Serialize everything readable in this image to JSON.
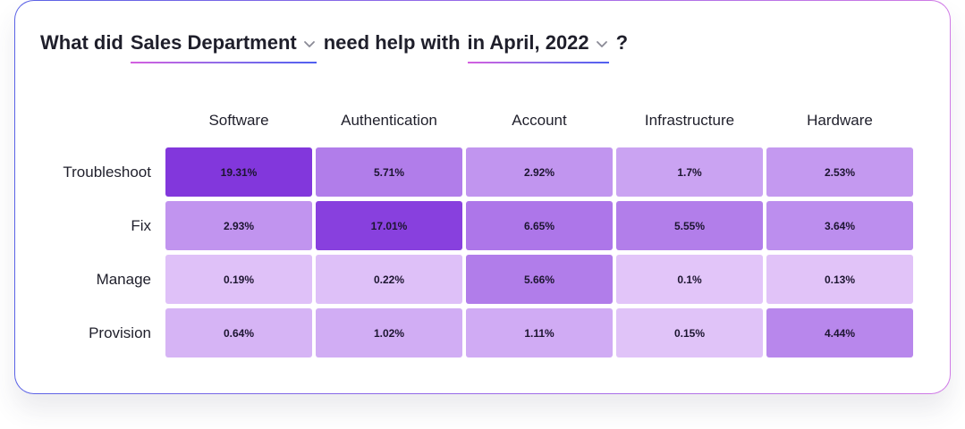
{
  "question": {
    "prefix": "What did",
    "department": "Sales Department",
    "middle": "need help with",
    "period": "in April, 2022",
    "suffix": "?"
  },
  "icons": {
    "department_dropdown": "chevron-down-icon",
    "period_dropdown": "chevron-down-icon"
  },
  "colors": {
    "scale_low": "#e9d0fb",
    "scale_high": "#8237dc",
    "underline_gradient": [
      "#d45fe0",
      "#8d6be8",
      "#4f5ff0"
    ]
  },
  "chart_data": {
    "type": "heatmap",
    "columns": [
      "Software",
      "Authentication",
      "Account",
      "Infrastructure",
      "Hardware"
    ],
    "rows": [
      "Troubleshoot",
      "Fix",
      "Manage",
      "Provision"
    ],
    "values": [
      [
        19.31,
        5.71,
        2.92,
        1.7,
        2.53
      ],
      [
        2.93,
        17.01,
        6.65,
        5.55,
        3.64
      ],
      [
        0.19,
        0.22,
        5.66,
        0.1,
        0.13
      ],
      [
        0.64,
        1.02,
        1.11,
        0.15,
        4.44
      ]
    ],
    "labels": [
      [
        "19.31%",
        "5.71%",
        "2.92%",
        "1.7%",
        "2.53%"
      ],
      [
        "2.93%",
        "17.01%",
        "6.65%",
        "5.55%",
        "3.64%"
      ],
      [
        "0.19%",
        "0.22%",
        "5.66%",
        "0.1%",
        "0.13%"
      ],
      [
        "0.64%",
        "1.02%",
        "1.11%",
        "0.15%",
        "4.44%"
      ]
    ],
    "unit": "%"
  }
}
